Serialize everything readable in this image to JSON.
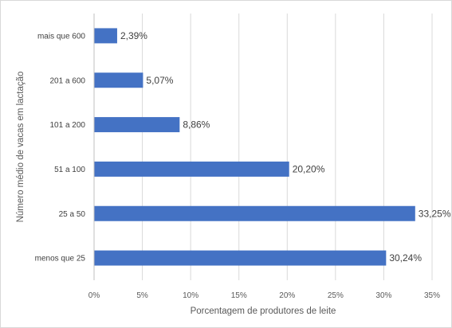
{
  "chart_data": {
    "type": "bar",
    "orientation": "horizontal",
    "categories": [
      "menos que 25",
      "25 a 50",
      "51 a 100",
      "101 a 200",
      "201 a 600",
      "mais que 600"
    ],
    "values": [
      30.24,
      33.25,
      20.2,
      8.86,
      5.07,
      2.39
    ],
    "data_labels": [
      "30,24%",
      "33,25%",
      "20,20%",
      "8,86%",
      "5,07%",
      "2,39%"
    ],
    "xlim": [
      0,
      35
    ],
    "xticks": [
      0,
      5,
      10,
      15,
      20,
      25,
      30,
      35
    ],
    "xtick_labels": [
      "0%",
      "5%",
      "10%",
      "15%",
      "20%",
      "25%",
      "30%",
      "35%"
    ],
    "xlabel": "Porcentagem de produtores de leite",
    "ylabel": "Número médio de vacas em lactação",
    "grid": "vertical",
    "legend": "none",
    "colors": {
      "bar": "#4472C4",
      "grid": "#d9d9d9",
      "axis": "#bfbfbf"
    }
  }
}
